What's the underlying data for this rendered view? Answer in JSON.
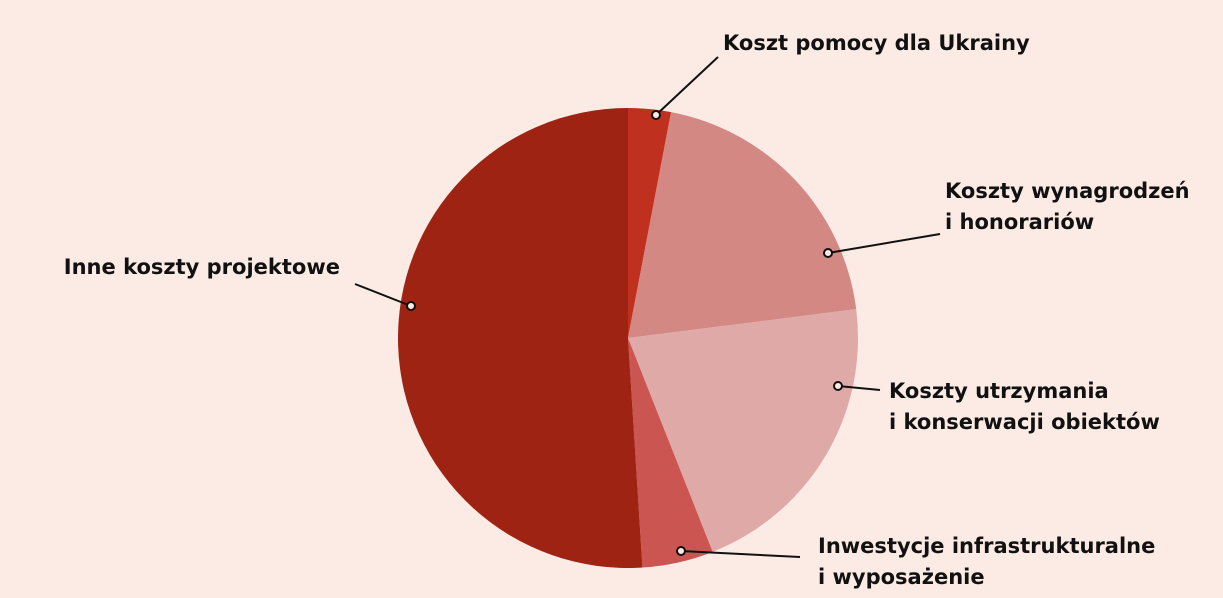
{
  "chart_data": {
    "type": "pie",
    "categories": [
      "Koszt pomocy dla Ukrainy",
      "Koszty wynagrodzeń\ni honorariów",
      "Koszty utrzymania\ni konserwacji obiektów",
      "Inwestycje infrastrukturalne\ni wyposażenie",
      "Inne koszty projektowe"
    ],
    "values": [
      3,
      20,
      21,
      5,
      51
    ],
    "colors": [
      "#c0301f",
      "#d48884",
      "#dfa9a8",
      "#cb5550",
      "#9e2312"
    ]
  }
}
